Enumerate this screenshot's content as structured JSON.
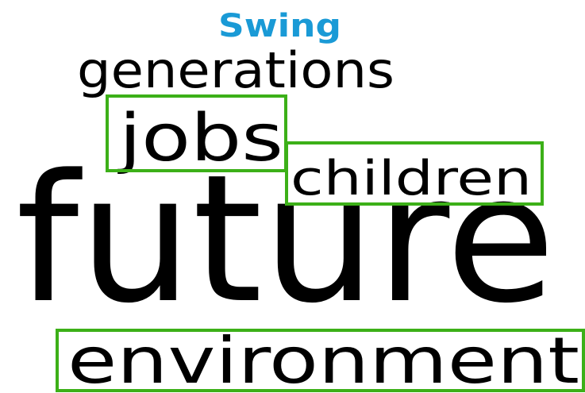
{
  "words": [
    {
      "text": "Swing",
      "color": "#1a9ad6",
      "highlighted": false
    },
    {
      "text": "generations",
      "color": "#000000",
      "highlighted": false
    },
    {
      "text": "jobs",
      "color": "#000000",
      "highlighted": true
    },
    {
      "text": "children",
      "color": "#000000",
      "highlighted": true
    },
    {
      "text": "future",
      "color": "#000000",
      "highlighted": false
    },
    {
      "text": "environment",
      "color": "#000000",
      "highlighted": true
    }
  ],
  "highlight_color": "#3cb018"
}
